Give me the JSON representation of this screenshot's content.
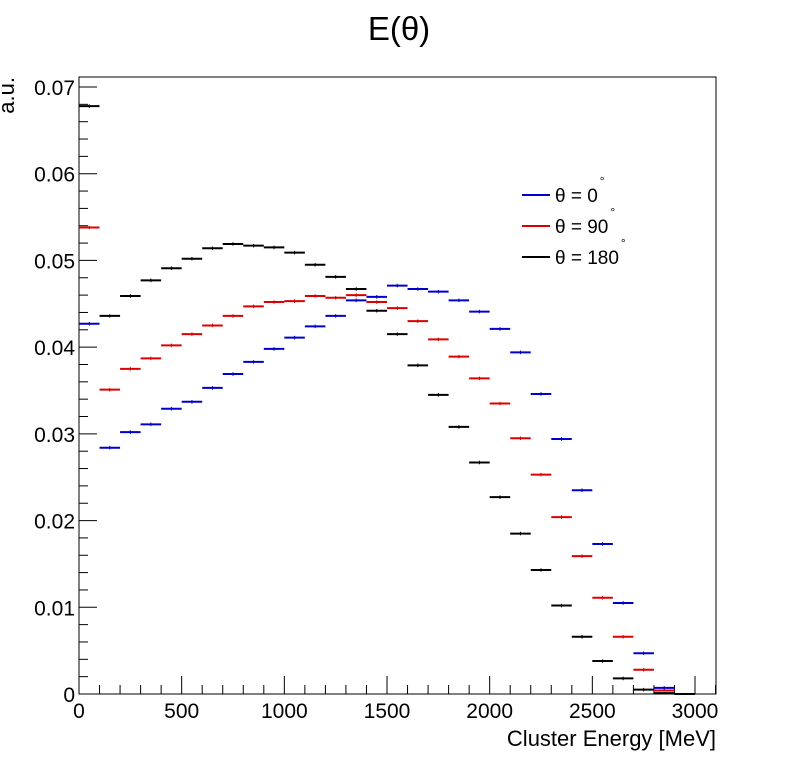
{
  "chart_data": {
    "type": "scatter",
    "title": "E(θ)",
    "xlabel": "Cluster Energy [MeV]",
    "ylabel": "a.u.",
    "xlim": [
      0,
      3100
    ],
    "ylim": [
      0,
      0.071
    ],
    "xticks": [
      "0",
      "500",
      "1000",
      "1500",
      "2000",
      "2500",
      "3000"
    ],
    "yticks": [
      "0",
      "0.01",
      "0.02",
      "0.03",
      "0.04",
      "0.05",
      "0.06",
      "0.07"
    ],
    "bin_width": 100,
    "grid": false,
    "legend_position": "top-right",
    "degree_symbol": "°",
    "bin_centers": [
      50,
      150,
      250,
      350,
      450,
      550,
      650,
      750,
      850,
      950,
      1050,
      1150,
      1250,
      1350,
      1450,
      1550,
      1650,
      1750,
      1850,
      1950,
      2050,
      2150,
      2250,
      2350,
      2450,
      2550,
      2650,
      2750,
      2850,
      2950
    ],
    "series": [
      {
        "name": "θ = 0",
        "color": "#0000cc",
        "values": [
          0.0427,
          0.0284,
          0.0302,
          0.0311,
          0.0329,
          0.0337,
          0.0353,
          0.0369,
          0.0383,
          0.0398,
          0.0411,
          0.0424,
          0.0436,
          0.0454,
          0.0458,
          0.0471,
          0.0467,
          0.0464,
          0.0454,
          0.0441,
          0.0421,
          0.0394,
          0.0346,
          0.0294,
          0.0235,
          0.0173,
          0.0105,
          0.0047,
          0.0007,
          0.0
        ]
      },
      {
        "name": "θ = 90",
        "color": "#dd0000",
        "values": [
          0.0538,
          0.0351,
          0.0375,
          0.0387,
          0.0402,
          0.0415,
          0.0425,
          0.0436,
          0.0447,
          0.0452,
          0.0453,
          0.0459,
          0.0457,
          0.046,
          0.0452,
          0.0445,
          0.043,
          0.0409,
          0.0389,
          0.0364,
          0.0335,
          0.0295,
          0.0253,
          0.0204,
          0.0159,
          0.0111,
          0.0066,
          0.0028,
          0.0004,
          0.0
        ]
      },
      {
        "name": "θ = 180",
        "color": "#000000",
        "values": [
          0.0678,
          0.0436,
          0.0459,
          0.0477,
          0.0491,
          0.0502,
          0.0514,
          0.0519,
          0.0517,
          0.0515,
          0.0509,
          0.0495,
          0.0481,
          0.0467,
          0.0442,
          0.0415,
          0.0379,
          0.0345,
          0.0308,
          0.0267,
          0.0227,
          0.0185,
          0.0143,
          0.0102,
          0.0066,
          0.0038,
          0.0018,
          0.0005,
          0.0001,
          0.0
        ]
      }
    ]
  }
}
